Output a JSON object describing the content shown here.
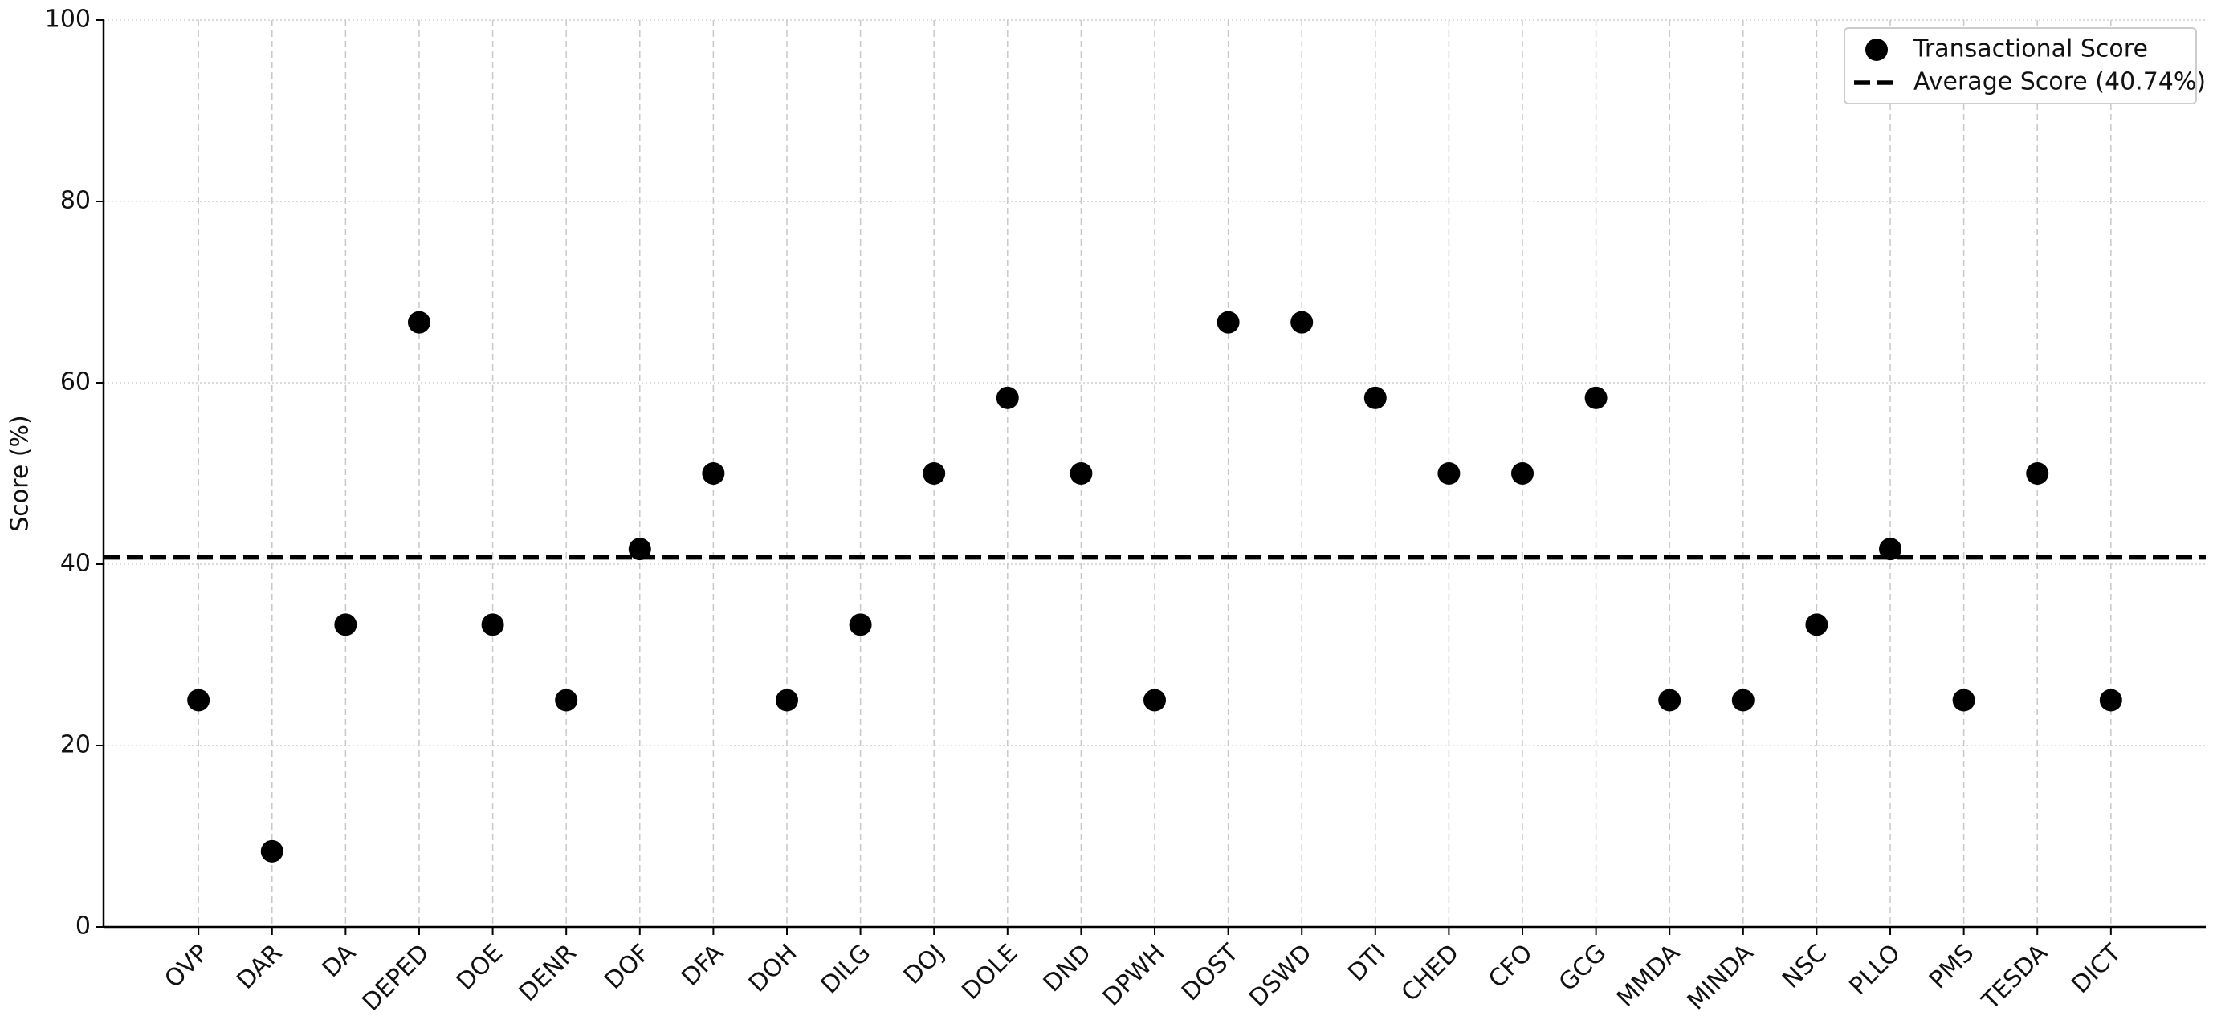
{
  "chart_data": {
    "type": "scatter",
    "ylabel": "Score (%)",
    "categories": [
      "OVP",
      "DAR",
      "DA",
      "DEPED",
      "DOE",
      "DENR",
      "DOF",
      "DFA",
      "DOH",
      "DILG",
      "DOJ",
      "DOLE",
      "DND",
      "DPWH",
      "DOST",
      "DSWD",
      "DTI",
      "CHED",
      "CFO",
      "GCG",
      "MMDA",
      "MINDA",
      "NSC",
      "PLLO",
      "PMS",
      "TESDA",
      "DICT"
    ],
    "series": [
      {
        "name": "Transactional Score",
        "color": "#000000",
        "values": [
          25,
          8.33,
          33.33,
          66.67,
          33.33,
          25,
          41.67,
          50,
          25,
          33.33,
          50,
          58.33,
          50,
          25,
          66.67,
          66.67,
          58.33,
          50,
          50,
          58.33,
          25,
          25,
          33.33,
          41.67,
          25,
          50,
          25
        ]
      }
    ],
    "average_line": {
      "name": "Average Score (40.74%)",
      "value": 40.74,
      "color": "#000000"
    },
    "ylim": [
      0,
      100
    ],
    "yticks": [
      0,
      20,
      40,
      60,
      80,
      100
    ],
    "grid": true,
    "legend": "upper right"
  }
}
